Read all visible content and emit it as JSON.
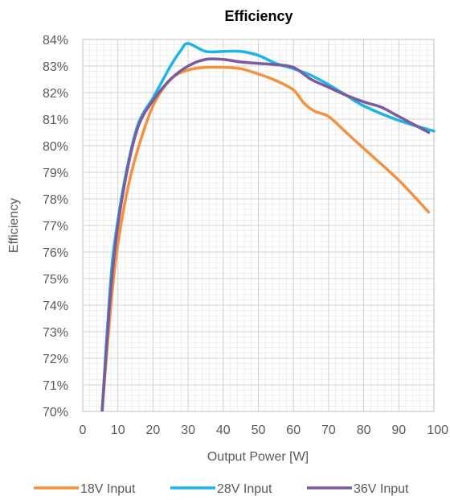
{
  "chart_data": {
    "type": "line",
    "title": "Efficiency",
    "xlabel": "Output Power [W]",
    "ylabel": "Efficiency",
    "xlim": [
      0,
      100
    ],
    "ylim": [
      70,
      84
    ],
    "x_ticks": [
      0,
      10,
      20,
      30,
      40,
      50,
      60,
      70,
      80,
      90,
      100
    ],
    "x_tick_labels": [
      "0",
      "10",
      "20",
      "30",
      "40",
      "50",
      "60",
      "70",
      "80",
      "90",
      "100"
    ],
    "y_ticks": [
      70,
      71,
      72,
      73,
      74,
      75,
      76,
      77,
      78,
      79,
      80,
      81,
      82,
      83,
      84
    ],
    "y_tick_labels": [
      "70%",
      "71%",
      "72%",
      "73%",
      "74%",
      "75%",
      "76%",
      "77%",
      "78%",
      "79%",
      "80%",
      "81%",
      "82%",
      "83%",
      "84%"
    ],
    "grid": true,
    "legend_position": "bottom",
    "series": [
      {
        "name": "18V Input",
        "color": "#F4913E",
        "points": [
          [
            5.5,
            70.0
          ],
          [
            8,
            74.0
          ],
          [
            10,
            76.3
          ],
          [
            13,
            78.5
          ],
          [
            16,
            80.0
          ],
          [
            20,
            81.5
          ],
          [
            25,
            82.5
          ],
          [
            30,
            82.85
          ],
          [
            35,
            82.95
          ],
          [
            40,
            82.95
          ],
          [
            45,
            82.9
          ],
          [
            50,
            82.7
          ],
          [
            55,
            82.45
          ],
          [
            60,
            82.1
          ],
          [
            63,
            81.6
          ],
          [
            66,
            81.3
          ],
          [
            70,
            81.1
          ],
          [
            75,
            80.5
          ],
          [
            80,
            79.9
          ],
          [
            90,
            78.7
          ],
          [
            98.5,
            77.5
          ]
        ]
      },
      {
        "name": "28V Input",
        "color": "#1CB4EA",
        "points": [
          [
            5.5,
            70.0
          ],
          [
            8,
            75.0
          ],
          [
            10,
            77.2
          ],
          [
            13,
            79.4
          ],
          [
            16,
            80.9
          ],
          [
            20,
            81.8
          ],
          [
            25,
            83.0
          ],
          [
            28,
            83.6
          ],
          [
            30,
            83.85
          ],
          [
            35,
            83.55
          ],
          [
            40,
            83.55
          ],
          [
            45,
            83.55
          ],
          [
            50,
            83.4
          ],
          [
            55,
            83.1
          ],
          [
            60,
            82.9
          ],
          [
            65,
            82.65
          ],
          [
            70,
            82.3
          ],
          [
            75,
            81.9
          ],
          [
            80,
            81.5
          ],
          [
            90,
            80.95
          ],
          [
            100,
            80.55
          ]
        ]
      },
      {
        "name": "36V Input",
        "color": "#7B5A9E",
        "points": [
          [
            5.5,
            70.0
          ],
          [
            8,
            74.6
          ],
          [
            10,
            77.0
          ],
          [
            13,
            79.3
          ],
          [
            16,
            80.8
          ],
          [
            20,
            81.7
          ],
          [
            25,
            82.5
          ],
          [
            30,
            83.0
          ],
          [
            35,
            83.25
          ],
          [
            40,
            83.25
          ],
          [
            45,
            83.15
          ],
          [
            50,
            83.1
          ],
          [
            55,
            83.05
          ],
          [
            60,
            82.95
          ],
          [
            65,
            82.5
          ],
          [
            70,
            82.2
          ],
          [
            75,
            81.9
          ],
          [
            80,
            81.65
          ],
          [
            85,
            81.45
          ],
          [
            90,
            81.1
          ],
          [
            98.5,
            80.5
          ]
        ]
      }
    ]
  }
}
